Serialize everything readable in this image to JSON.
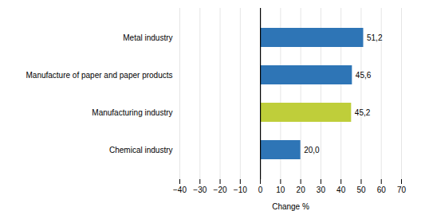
{
  "chart_data": {
    "type": "bar",
    "orientation": "horizontal",
    "categories": [
      "Chemical industry",
      "Manufacturing industry",
      "Manufacture of paper and paper products",
      "Metal industry"
    ],
    "values": [
      20.0,
      45.2,
      45.6,
      51.2
    ],
    "value_labels": [
      "20,0",
      "45,2",
      "45,6",
      "51,2"
    ],
    "colors": [
      "#2E75B6",
      "#BFCE3A",
      "#2E75B6",
      "#2E75B6"
    ],
    "xlabel": "Change %",
    "xlim": [
      -40,
      70
    ],
    "xticks": [
      -40,
      -30,
      -20,
      -10,
      0,
      10,
      20,
      30,
      40,
      50,
      60,
      70
    ],
    "grid": true,
    "data_labels": true
  }
}
